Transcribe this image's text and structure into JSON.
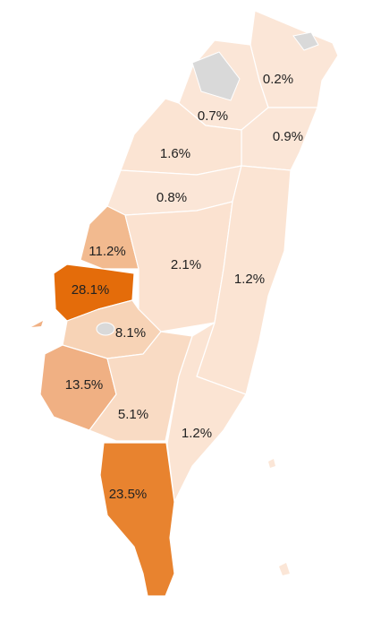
{
  "regions": [
    {
      "label": "0.2%",
      "color": "#fbe6d7"
    },
    {
      "label": "0.7%",
      "color": "#fbe6d7"
    },
    {
      "label": "0.9%",
      "color": "#fbe6d7"
    },
    {
      "label": "1.6%",
      "color": "#fbe4d3"
    },
    {
      "label": "0.8%",
      "color": "#fbe6d7"
    },
    {
      "label": "11.2%",
      "color": "#f2ba8f"
    },
    {
      "label": "2.1%",
      "color": "#fbe2d0"
    },
    {
      "label": "1.2%",
      "color": "#fbe4d3"
    },
    {
      "label": "28.1%",
      "color": "#e46c0a"
    },
    {
      "label": "8.1%",
      "color": "#f7d3b6"
    },
    {
      "label": "13.5%",
      "color": "#f0b083"
    },
    {
      "label": "5.1%",
      "color": "#f9dbc4"
    },
    {
      "label": "1.2%",
      "color": "#fbe4d3"
    },
    {
      "label": "23.5%",
      "color": "#e8832f"
    }
  ]
}
